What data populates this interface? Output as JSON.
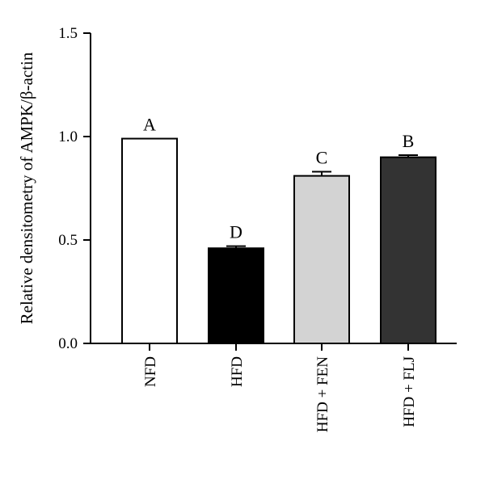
{
  "chart_data": {
    "type": "bar",
    "title": "",
    "xlabel": "",
    "ylabel": "Relative densitometry of AMPK/β-actin",
    "ylim": [
      0,
      1.5
    ],
    "yticks": [
      "0.0",
      "0.5",
      "1.0",
      "1.5"
    ],
    "ytick_values": [
      0,
      0.5,
      1.0,
      1.5
    ],
    "categories": [
      "NFD",
      "HFD",
      "HFD + FEN",
      "HFD + FLJ"
    ],
    "values": [
      0.99,
      0.46,
      0.81,
      0.9
    ],
    "errors": [
      0,
      0.01,
      0.02,
      0.01
    ],
    "significance": [
      "A",
      "D",
      "C",
      "B"
    ],
    "colors": [
      "#ffffff",
      "#000000",
      "#d3d3d3",
      "#333333"
    ],
    "grid": false,
    "legend": "none"
  }
}
